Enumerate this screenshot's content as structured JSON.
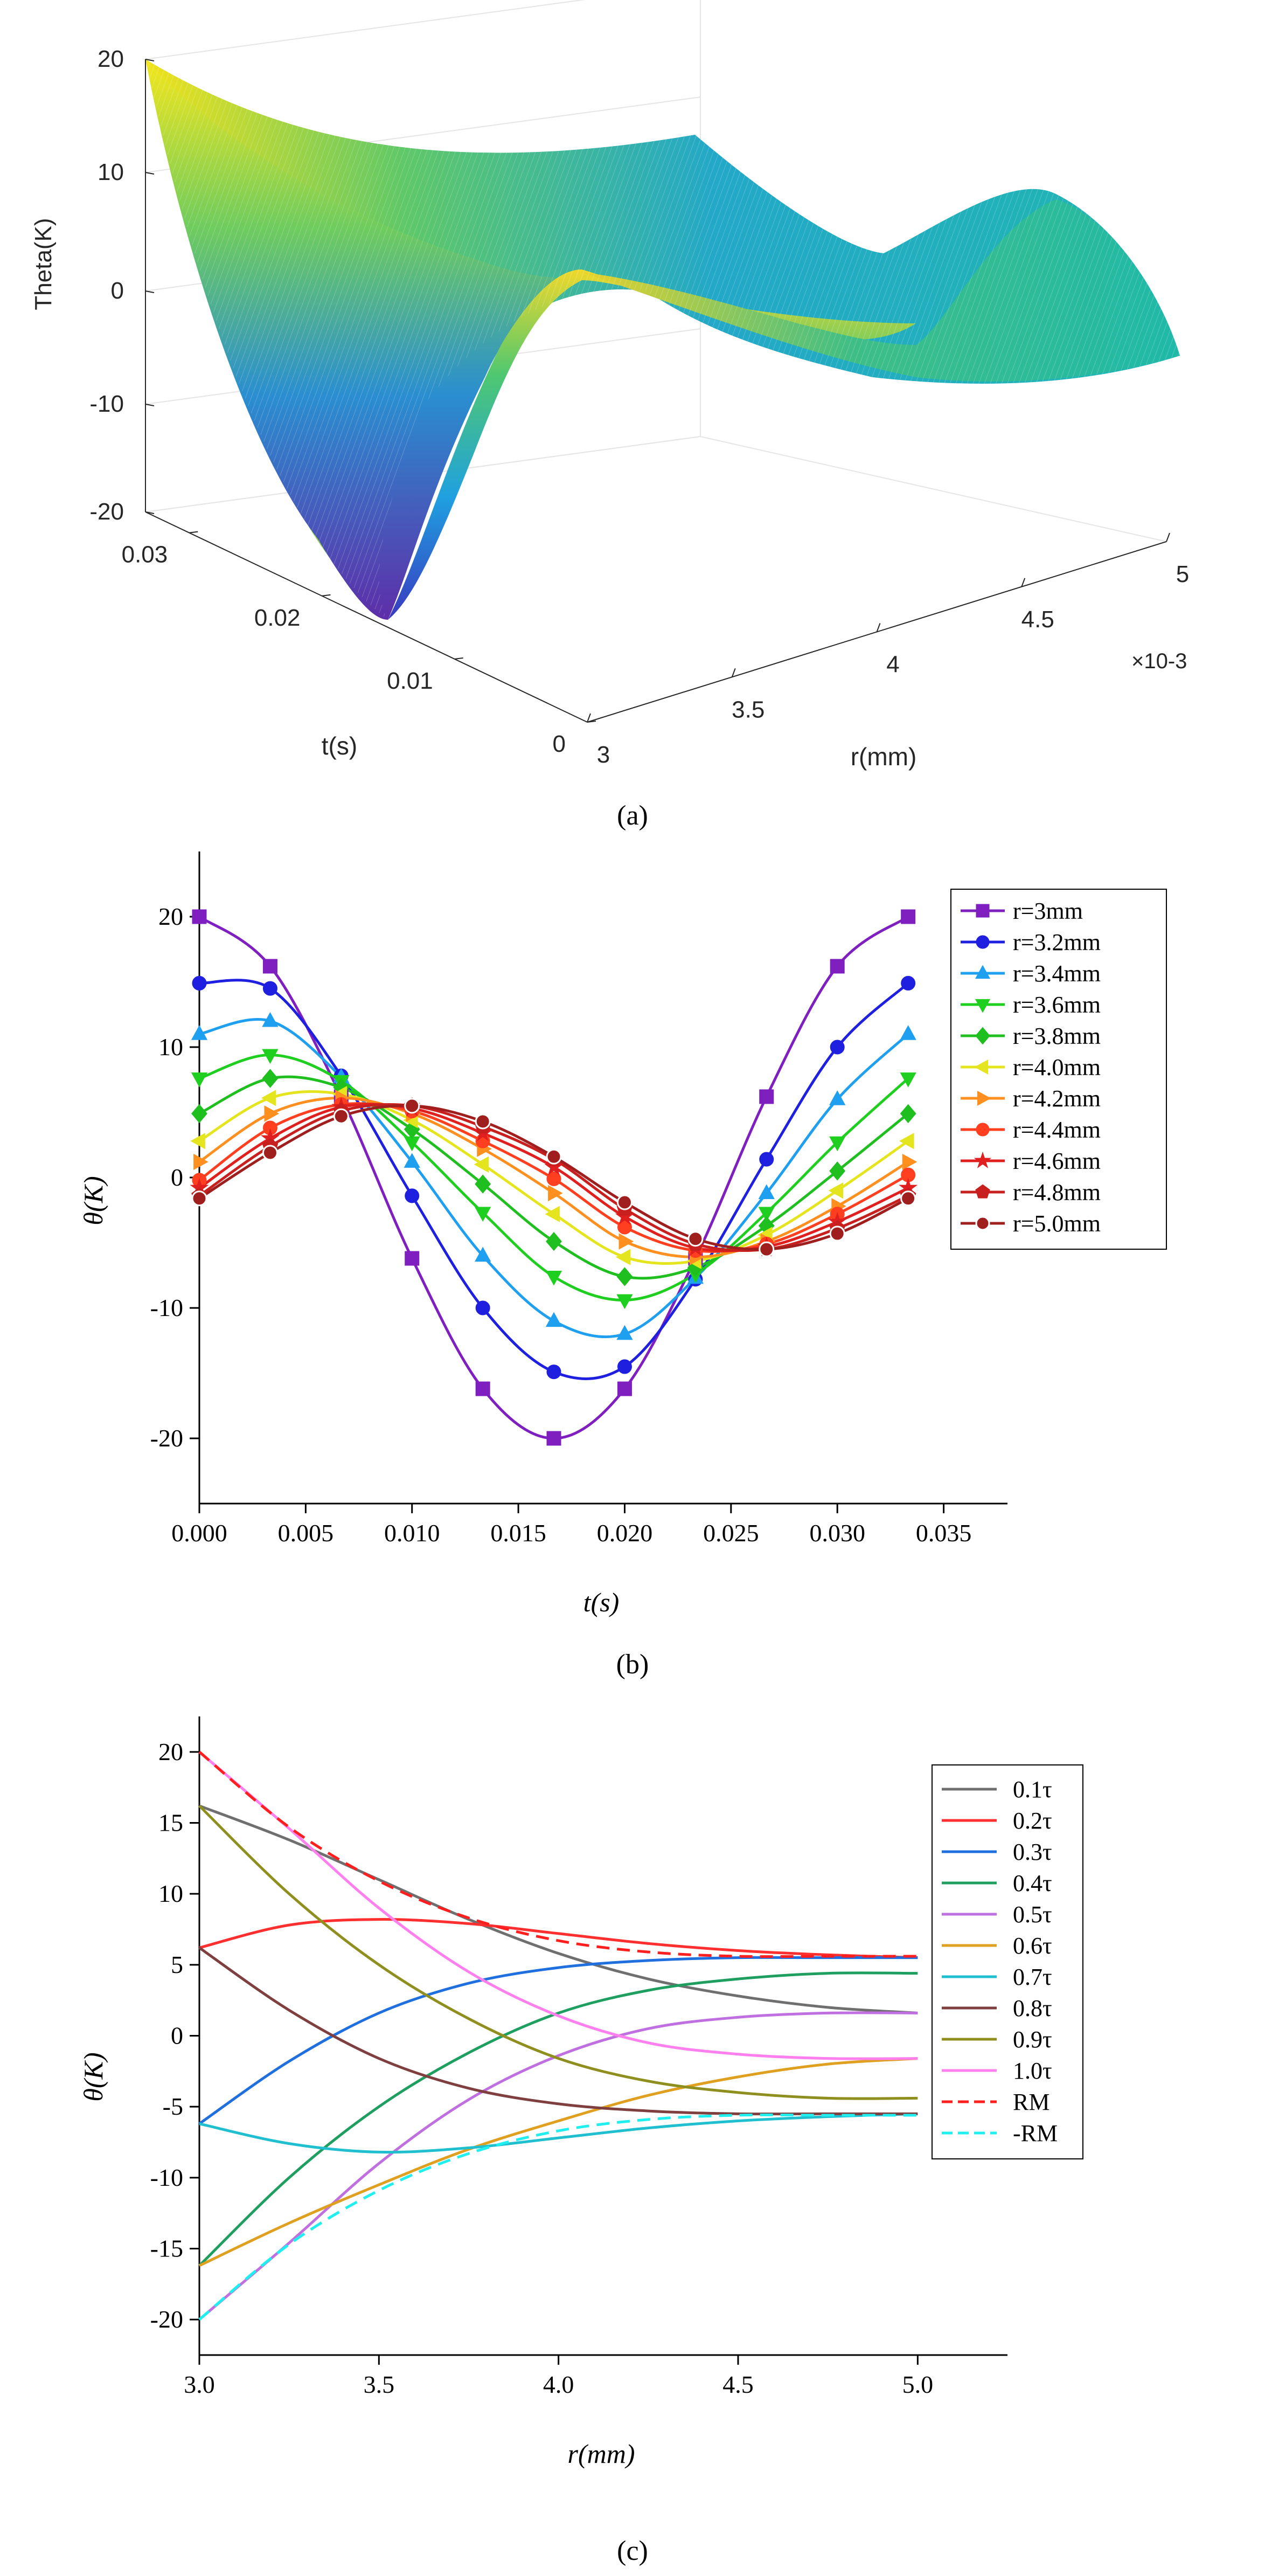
{
  "chart_data": [
    {
      "type": "surface3d",
      "panel_label": "(a)",
      "zlabel": "Theta(K)",
      "xlabel": "r(mm)",
      "ylabel": "t(s)",
      "x_scale_label": "×10-3",
      "x_ticks": [
        "3",
        "3.5",
        "4",
        "4.5",
        "5"
      ],
      "y_ticks": [
        "0",
        "0.01",
        "0.02",
        "0.03"
      ],
      "z_ticks": [
        "20",
        "10",
        "0",
        "-10",
        "-20"
      ],
      "xlim": [
        0.003,
        0.005
      ],
      "ylim": [
        0,
        0.0333
      ],
      "zlim": [
        -20,
        20
      ],
      "grid": true
    },
    {
      "type": "line",
      "panel_label": "(b)",
      "xlabel": "t(s)",
      "ylabel": "θ(K)",
      "xlim": [
        0,
        0.038
      ],
      "ylim": [
        -25,
        25
      ],
      "x_ticks": [
        "0.000",
        "0.005",
        "0.010",
        "0.015",
        "0.020",
        "0.025",
        "0.030",
        "0.035"
      ],
      "y_ticks": [
        "20",
        "10",
        "0",
        "-10",
        "-20"
      ],
      "legend_position": "top-right",
      "x": [
        0,
        0.00333,
        0.00667,
        0.01,
        0.01333,
        0.01667,
        0.02,
        0.02333,
        0.02667,
        0.03,
        0.03333
      ],
      "series": [
        {
          "name": "r=3mm",
          "color": "#7F1FBF",
          "marker": "square",
          "values": [
            20.0,
            16.2,
            6.2,
            -6.2,
            -16.2,
            -20.0,
            -16.2,
            -6.2,
            6.2,
            16.2,
            20.0
          ]
        },
        {
          "name": "r=3.2mm",
          "color": "#1F1FDF",
          "marker": "circle",
          "values": [
            14.9,
            14.5,
            7.8,
            -1.4,
            -10.0,
            -14.9,
            -14.5,
            -7.8,
            1.4,
            10.0,
            14.9
          ]
        },
        {
          "name": "r=3.4mm",
          "color": "#1F9FEF",
          "marker": "triangle-up",
          "values": [
            11.0,
            12.0,
            7.7,
            1.2,
            -6.0,
            -11.0,
            -12.0,
            -7.7,
            -1.2,
            6.0,
            11.0
          ]
        },
        {
          "name": "r=3.6mm",
          "color": "#1FCF1F",
          "marker": "triangle-down",
          "values": [
            7.6,
            9.4,
            7.4,
            2.7,
            -2.7,
            -7.6,
            -9.4,
            -7.4,
            -2.7,
            2.7,
            7.6
          ]
        },
        {
          "name": "r=3.8mm",
          "color": "#1FBF1F",
          "marker": "diamond",
          "values": [
            4.9,
            7.6,
            6.9,
            3.7,
            -0.5,
            -4.9,
            -7.6,
            -6.9,
            -3.7,
            0.5,
            4.9
          ]
        },
        {
          "name": "r=4.0mm",
          "color": "#E5E51F",
          "marker": "triangle-left",
          "values": [
            2.8,
            6.1,
            6.4,
            4.4,
            1.0,
            -2.8,
            -6.1,
            -6.4,
            -4.4,
            -1.0,
            2.8
          ]
        },
        {
          "name": "r=4.2mm",
          "color": "#FF8F1F",
          "marker": "triangle-right",
          "values": [
            1.2,
            4.9,
            6.1,
            4.9,
            2.2,
            -1.2,
            -4.9,
            -6.1,
            -4.9,
            -2.2,
            1.2
          ]
        },
        {
          "name": "r=4.4mm",
          "color": "#FF3F1F",
          "marker": "circle",
          "values": [
            -0.2,
            3.8,
            5.6,
            5.1,
            2.8,
            -0.1,
            -3.8,
            -5.6,
            -5.1,
            -2.8,
            0.2
          ]
        },
        {
          "name": "r=4.6mm",
          "color": "#E01F1F",
          "marker": "star",
          "values": [
            -0.8,
            3.0,
            5.4,
            5.3,
            3.4,
            0.8,
            -3.0,
            -5.4,
            -5.3,
            -3.4,
            -0.8
          ]
        },
        {
          "name": "r=4.8mm",
          "color": "#C81F1F",
          "marker": "pentagon",
          "values": [
            -1.4,
            2.4,
            5.1,
            5.5,
            3.9,
            1.4,
            -2.4,
            -5.1,
            -5.5,
            -3.9,
            -1.4
          ]
        },
        {
          "name": "r=5.0mm",
          "color": "#9F1F1F",
          "marker": "sphere",
          "values": [
            -1.6,
            1.9,
            4.7,
            5.5,
            4.3,
            1.6,
            -1.9,
            -4.7,
            -5.5,
            -4.3,
            -1.6
          ]
        }
      ]
    },
    {
      "type": "line",
      "panel_label": "(c)",
      "xlabel": "r(mm)",
      "ylabel": "θ(K)",
      "xlim": [
        3.0,
        5.25
      ],
      "ylim": [
        -22.5,
        22.5
      ],
      "x_ticks": [
        "3.0",
        "3.5",
        "4.0",
        "4.5",
        "5.0"
      ],
      "y_ticks": [
        "20",
        "15",
        "10",
        "5",
        "0",
        "-5",
        "-10",
        "-15",
        "-20"
      ],
      "legend_position": "right",
      "x": [
        3.0,
        3.25,
        3.5,
        3.75,
        4.0,
        4.25,
        4.5,
        4.75,
        5.0
      ],
      "series": [
        {
          "name": "0.1τ",
          "color": "#6F6F6F",
          "dash": "solid",
          "values": [
            16.2,
            13.8,
            11.0,
            8.2,
            5.8,
            4.0,
            2.8,
            2.0,
            1.6
          ]
        },
        {
          "name": "0.2τ",
          "color": "#FF2F2F",
          "dash": "solid",
          "values": [
            6.2,
            7.8,
            8.2,
            7.9,
            7.2,
            6.5,
            6.0,
            5.7,
            5.5
          ]
        },
        {
          "name": "0.3τ",
          "color": "#1F6FDF",
          "dash": "solid",
          "values": [
            -6.2,
            -1.8,
            1.6,
            3.7,
            4.8,
            5.3,
            5.5,
            5.5,
            5.5
          ]
        },
        {
          "name": "0.4τ",
          "color": "#1F9F5F",
          "dash": "solid",
          "values": [
            -16.2,
            -10.0,
            -5.0,
            -1.2,
            1.6,
            3.2,
            4.0,
            4.4,
            4.4
          ]
        },
        {
          "name": "0.5τ",
          "color": "#BF6FDF",
          "dash": "solid",
          "values": [
            -20.0,
            -14.6,
            -9.0,
            -4.5,
            -1.4,
            0.5,
            1.3,
            1.6,
            1.6
          ]
        },
        {
          "name": "0.6τ",
          "color": "#DF9F1F",
          "dash": "solid",
          "values": [
            -16.2,
            -13.2,
            -10.5,
            -8.0,
            -6.0,
            -4.2,
            -2.9,
            -2.0,
            -1.6
          ]
        },
        {
          "name": "0.7τ",
          "color": "#1FBFCF",
          "dash": "solid",
          "values": [
            -6.2,
            -7.6,
            -8.2,
            -7.9,
            -7.2,
            -6.5,
            -6.0,
            -5.7,
            -5.5
          ]
        },
        {
          "name": "0.8τ",
          "color": "#7F3F3F",
          "dash": "solid",
          "values": [
            6.2,
            1.8,
            -1.6,
            -3.7,
            -4.8,
            -5.3,
            -5.5,
            -5.5,
            -5.5
          ]
        },
        {
          "name": "0.9τ",
          "color": "#8F8F1F",
          "dash": "solid",
          "values": [
            16.2,
            10.0,
            5.0,
            1.2,
            -1.6,
            -3.2,
            -4.0,
            -4.4,
            -4.4
          ]
        },
        {
          "name": "1.0τ",
          "color": "#FF7FEF",
          "dash": "solid",
          "values": [
            20.0,
            14.6,
            9.0,
            4.5,
            1.4,
            -0.5,
            -1.3,
            -1.6,
            -1.6
          ]
        },
        {
          "name": "RM",
          "color": "#FF1F1F",
          "dash": "dashed",
          "values": [
            20.0,
            14.7,
            10.9,
            8.3,
            6.7,
            5.9,
            5.6,
            5.6,
            5.6
          ]
        },
        {
          "name": "-RM",
          "color": "#1FEFEF",
          "dash": "dashed",
          "values": [
            -20.0,
            -14.7,
            -10.9,
            -8.3,
            -6.7,
            -5.9,
            -5.6,
            -5.6,
            -5.6
          ]
        }
      ]
    }
  ]
}
